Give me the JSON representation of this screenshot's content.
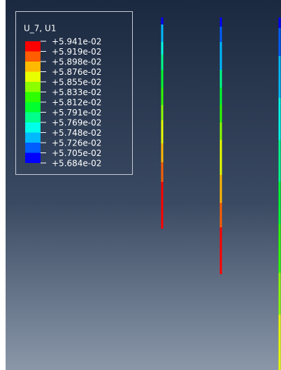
{
  "legend": {
    "title": "U_7, U1",
    "labels": [
      "+5.941e-02",
      "+5.919e-02",
      "+5.898e-02",
      "+5.876e-02",
      "+5.855e-02",
      "+5.833e-02",
      "+5.812e-02",
      "+5.791e-02",
      "+5.769e-02",
      "+5.748e-02",
      "+5.726e-02",
      "+5.705e-02",
      "+5.684e-02"
    ]
  }
}
